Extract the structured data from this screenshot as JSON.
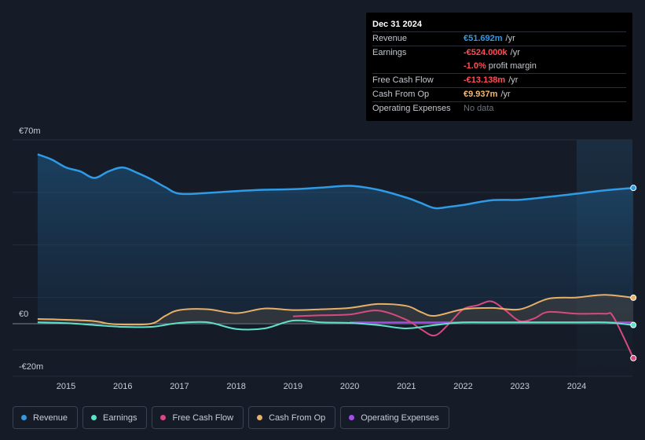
{
  "tooltip": {
    "date": "Dec 31 2024",
    "rows": [
      {
        "label": "Revenue",
        "value": "€51.692m",
        "unit": "/yr"
      },
      {
        "label": "Earnings",
        "value": "-€524.000k",
        "unit": "/yr"
      },
      {
        "label": "",
        "value": "-1.0%",
        "unit": "profit margin"
      },
      {
        "label": "Free Cash Flow",
        "value": "-€13.138m",
        "unit": "/yr"
      },
      {
        "label": "Cash From Op",
        "value": "€9.937m",
        "unit": "/yr"
      },
      {
        "label": "Operating Expenses",
        "value": "No data",
        "unit": ""
      }
    ]
  },
  "legend": [
    {
      "label": "Revenue",
      "color": "#2f9be6"
    },
    {
      "label": "Earnings",
      "color": "#5fe0c8"
    },
    {
      "label": "Free Cash Flow",
      "color": "#d9487f"
    },
    {
      "label": "Cash From Op",
      "color": "#e8b067"
    },
    {
      "label": "Operating Expenses",
      "color": "#a44ee8"
    }
  ],
  "chart_data": {
    "type": "line",
    "title": "",
    "ylabel_top": "€70m",
    "ylabel_zero": "€0",
    "ylabel_bottom": "-€20m",
    "ylim": [
      -20,
      70
    ],
    "xlim": [
      2014.5,
      2025.0
    ],
    "xticks": [
      2015,
      2016,
      2017,
      2018,
      2019,
      2020,
      2021,
      2022,
      2023,
      2024
    ],
    "xtick_labels": [
      "2015",
      "2016",
      "2017",
      "2018",
      "2019",
      "2020",
      "2021",
      "2022",
      "2023",
      "2024"
    ],
    "highlight_from": 2024.0,
    "series": [
      {
        "name": "Revenue",
        "color": "#2f9be6",
        "fill": true,
        "points": [
          [
            2014.5,
            64.5
          ],
          [
            2014.75,
            62.5
          ],
          [
            2015.0,
            59.5
          ],
          [
            2015.25,
            58.0
          ],
          [
            2015.5,
            55.5
          ],
          [
            2015.75,
            58.0
          ],
          [
            2016.0,
            59.5
          ],
          [
            2016.25,
            57.5
          ],
          [
            2016.5,
            55.0
          ],
          [
            2016.75,
            52.0
          ],
          [
            2017.0,
            49.5
          ],
          [
            2017.5,
            49.8
          ],
          [
            2018.0,
            50.5
          ],
          [
            2018.5,
            51.0
          ],
          [
            2019.0,
            51.2
          ],
          [
            2019.5,
            51.8
          ],
          [
            2020.0,
            52.5
          ],
          [
            2020.5,
            51.0
          ],
          [
            2021.0,
            48.0
          ],
          [
            2021.25,
            46.0
          ],
          [
            2021.5,
            44.0
          ],
          [
            2021.75,
            44.5
          ],
          [
            2022.0,
            45.2
          ],
          [
            2022.5,
            47.0
          ],
          [
            2023.0,
            47.2
          ],
          [
            2023.5,
            48.3
          ],
          [
            2024.0,
            49.5
          ],
          [
            2024.5,
            50.8
          ],
          [
            2025.0,
            51.7
          ]
        ]
      },
      {
        "name": "Earnings",
        "color": "#5fe0c8",
        "fill": false,
        "points": [
          [
            2014.5,
            0.5
          ],
          [
            2015.0,
            0.2
          ],
          [
            2015.5,
            -0.5
          ],
          [
            2016.0,
            -1.2
          ],
          [
            2016.5,
            -1.2
          ],
          [
            2017.0,
            0.3
          ],
          [
            2017.5,
            0.5
          ],
          [
            2018.0,
            -2.0
          ],
          [
            2018.5,
            -1.8
          ],
          [
            2019.0,
            1.2
          ],
          [
            2019.5,
            0.5
          ],
          [
            2020.0,
            0.3
          ],
          [
            2020.5,
            -0.5
          ],
          [
            2021.0,
            -1.8
          ],
          [
            2021.5,
            -0.5
          ],
          [
            2022.0,
            0.5
          ],
          [
            2022.5,
            0.5
          ],
          [
            2023.0,
            0.5
          ],
          [
            2023.5,
            0.5
          ],
          [
            2024.0,
            0.5
          ],
          [
            2024.5,
            0.5
          ],
          [
            2025.0,
            -0.5
          ]
        ]
      },
      {
        "name": "Free Cash Flow",
        "color": "#d9487f",
        "fill": false,
        "points": [
          [
            2019.0,
            2.8
          ],
          [
            2019.5,
            3.2
          ],
          [
            2020.0,
            3.5
          ],
          [
            2020.5,
            5.0
          ],
          [
            2021.0,
            1.5
          ],
          [
            2021.25,
            -2.0
          ],
          [
            2021.5,
            -4.5
          ],
          [
            2021.75,
            0.0
          ],
          [
            2022.0,
            5.5
          ],
          [
            2022.25,
            7.0
          ],
          [
            2022.5,
            8.5
          ],
          [
            2022.75,
            5.0
          ],
          [
            2023.0,
            1.0
          ],
          [
            2023.25,
            2.0
          ],
          [
            2023.5,
            4.5
          ],
          [
            2024.0,
            3.8
          ],
          [
            2024.5,
            3.8
          ],
          [
            2024.65,
            2.5
          ],
          [
            2025.0,
            -13.1
          ]
        ]
      },
      {
        "name": "Cash From Op",
        "color": "#e8b067",
        "fill": false,
        "points": [
          [
            2014.5,
            1.8
          ],
          [
            2015.0,
            1.5
          ],
          [
            2015.5,
            1.0
          ],
          [
            2015.75,
            0.0
          ],
          [
            2016.0,
            -0.3
          ],
          [
            2016.5,
            0.0
          ],
          [
            2016.75,
            3.0
          ],
          [
            2017.0,
            5.2
          ],
          [
            2017.5,
            5.5
          ],
          [
            2018.0,
            4.0
          ],
          [
            2018.5,
            5.8
          ],
          [
            2019.0,
            5.2
          ],
          [
            2019.5,
            5.5
          ],
          [
            2020.0,
            6.0
          ],
          [
            2020.5,
            7.5
          ],
          [
            2021.0,
            6.8
          ],
          [
            2021.25,
            4.5
          ],
          [
            2021.5,
            3.0
          ],
          [
            2022.0,
            5.5
          ],
          [
            2022.5,
            6.0
          ],
          [
            2023.0,
            5.5
          ],
          [
            2023.5,
            9.5
          ],
          [
            2024.0,
            10.0
          ],
          [
            2024.5,
            11.0
          ],
          [
            2025.0,
            9.9
          ]
        ]
      },
      {
        "name": "Operating Expenses",
        "color": "#a44ee8",
        "fill": false,
        "points": [
          [
            2020.0,
            0.5
          ],
          [
            2020.5,
            0.5
          ],
          [
            2021.0,
            0.5
          ],
          [
            2021.5,
            0.5
          ],
          [
            2022.0,
            0.5
          ],
          [
            2022.5,
            0.5
          ],
          [
            2023.0,
            0.5
          ],
          [
            2023.5,
            0.5
          ],
          [
            2024.0,
            0.5
          ],
          [
            2024.5,
            0.5
          ],
          [
            2025.0,
            0.5
          ]
        ]
      }
    ]
  }
}
